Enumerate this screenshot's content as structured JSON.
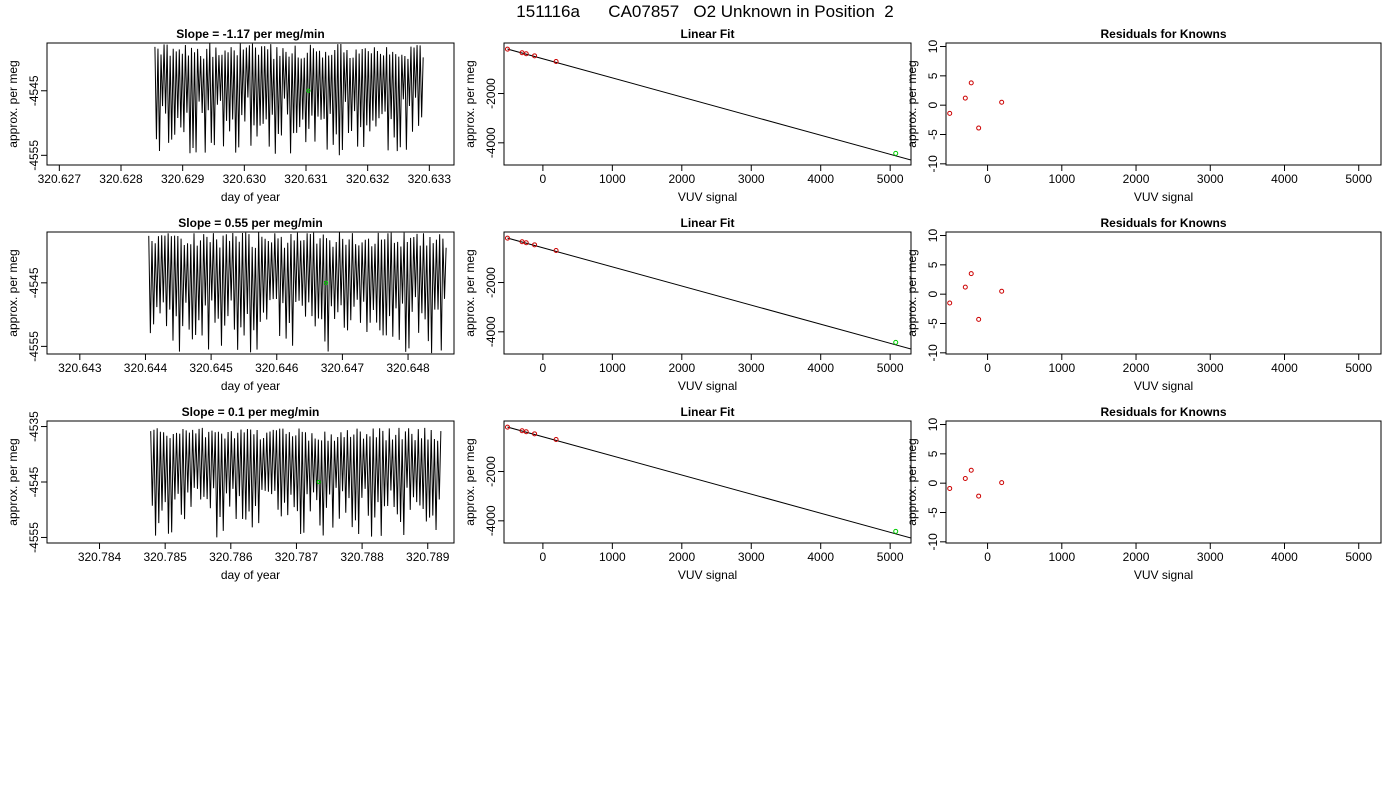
{
  "page_title": "151116a      CA07857   O2 Unknown in Position  2",
  "chart_data": [
    {
      "type": "line",
      "title": "Slope =  -1.17  per meg/min",
      "xlabel": "day of year",
      "ylabel": "approx. per meg",
      "xlim": [
        320.6268,
        320.6334
      ],
      "ylim": [
        -4556.5,
        -4537.6
      ],
      "xticks": [
        "320.627",
        "320.628",
        "320.629",
        "320.630",
        "320.631",
        "320.632",
        "320.633"
      ],
      "yticks": [
        "-4545",
        "-4555"
      ],
      "trace": {
        "x_start": 320.62855,
        "x_end": 320.6329,
        "y_low": -4555,
        "y_high": -4537.6,
        "cycles": 88,
        "seed": 11,
        "color": "#000000"
      },
      "highlight_point": {
        "x": 320.63104,
        "y": -4545.0,
        "color": "#00cc00"
      },
      "grid": false
    },
    {
      "type": "scatter",
      "title": "Linear Fit",
      "xlabel": "VUV signal",
      "ylabel": "approx. per meg",
      "xlim": [
        -560,
        5300
      ],
      "ylim": [
        -4900,
        50
      ],
      "xticks": [
        "0",
        "1000",
        "2000",
        "3000",
        "4000",
        "5000"
      ],
      "yticks": [
        "-2000",
        "-4000"
      ],
      "points": [
        {
          "x": -510,
          "y": -200
        },
        {
          "x": -300,
          "y": -345
        },
        {
          "x": -240,
          "y": -385
        },
        {
          "x": -120,
          "y": -470
        },
        {
          "x": 190,
          "y": -700
        }
      ],
      "points_color": "#cc0000",
      "unknown_point": {
        "x": 5080,
        "y": -4430,
        "color": "#00cc00"
      },
      "fit_line": {
        "x": [
          -510,
          5300
        ],
        "y": [
          -195,
          -4700
        ],
        "color": "#000000"
      },
      "grid": false
    },
    {
      "type": "scatter",
      "title": "Residuals for Knowns",
      "xlabel": "VUV signal",
      "ylabel": "approx. per meg",
      "xlim": [
        -560,
        5300
      ],
      "ylim": [
        -10.2,
        10.6
      ],
      "xticks": [
        "0",
        "1000",
        "2000",
        "3000",
        "4000",
        "5000"
      ],
      "yticks": [
        "-10",
        "-5",
        "0",
        "5",
        "10"
      ],
      "points": [
        {
          "x": -510,
          "y": -1.4
        },
        {
          "x": -300,
          "y": 1.2
        },
        {
          "x": -220,
          "y": 3.8
        },
        {
          "x": -120,
          "y": -3.9
        },
        {
          "x": 190,
          "y": 0.5
        }
      ],
      "points_color": "#cc0000",
      "grid": false
    },
    {
      "type": "line",
      "title": "Slope =  0.55  per meg/min",
      "xlabel": "day of year",
      "ylabel": "approx. per meg",
      "xlim": [
        320.6425,
        320.6487
      ],
      "ylim": [
        -4556.2,
        -4537.0
      ],
      "xticks": [
        "320.643",
        "320.644",
        "320.645",
        "320.646",
        "320.647",
        "320.648"
      ],
      "yticks": [
        "-4545",
        "-4555"
      ],
      "trace": {
        "x_start": 320.64405,
        "x_end": 320.64858,
        "y_low": -4556.2,
        "y_high": -4537.0,
        "cycles": 92,
        "seed": 23,
        "color": "#000000"
      },
      "highlight_point": {
        "x": 320.64675,
        "y": -4545.0,
        "color": "#00cc00"
      },
      "grid": false
    },
    {
      "type": "scatter",
      "title": "Linear Fit",
      "xlabel": "VUV signal",
      "ylabel": "approx. per meg",
      "xlim": [
        -560,
        5300
      ],
      "ylim": [
        -4900,
        50
      ],
      "xticks": [
        "0",
        "1000",
        "2000",
        "3000",
        "4000",
        "5000"
      ],
      "yticks": [
        "-2000",
        "-4000"
      ],
      "points": [
        {
          "x": -510,
          "y": -200
        },
        {
          "x": -300,
          "y": -345
        },
        {
          "x": -240,
          "y": -385
        },
        {
          "x": -120,
          "y": -470
        },
        {
          "x": 190,
          "y": -700
        }
      ],
      "points_color": "#cc0000",
      "unknown_point": {
        "x": 5080,
        "y": -4430,
        "color": "#00cc00"
      },
      "fit_line": {
        "x": [
          -510,
          5300
        ],
        "y": [
          -195,
          -4700
        ],
        "color": "#000000"
      },
      "grid": false
    },
    {
      "type": "scatter",
      "title": "Residuals for Knowns",
      "xlabel": "VUV signal",
      "ylabel": "approx. per meg",
      "xlim": [
        -560,
        5300
      ],
      "ylim": [
        -10.2,
        10.6
      ],
      "xticks": [
        "0",
        "1000",
        "2000",
        "3000",
        "4000",
        "5000"
      ],
      "yticks": [
        "-10",
        "-5",
        "0",
        "5",
        "10"
      ],
      "points": [
        {
          "x": -510,
          "y": -1.5
        },
        {
          "x": -300,
          "y": 1.2
        },
        {
          "x": -220,
          "y": 3.5
        },
        {
          "x": -120,
          "y": -4.3
        },
        {
          "x": 190,
          "y": 0.5
        }
      ],
      "points_color": "#cc0000",
      "grid": false
    },
    {
      "type": "line",
      "title": "Slope =  0.1  per meg/min",
      "xlabel": "day of year",
      "ylabel": "approx. per meg",
      "xlim": [
        320.7832,
        320.7894
      ],
      "ylim": [
        -4556.0,
        -4534.0
      ],
      "xticks": [
        "320.784",
        "320.785",
        "320.786",
        "320.787",
        "320.788",
        "320.789"
      ],
      "yticks": [
        "-4535",
        "-4545",
        "-4555"
      ],
      "trace": {
        "x_start": 320.78478,
        "x_end": 320.7892,
        "y_low": -4555,
        "y_high": -4535.2,
        "cycles": 90,
        "seed": 37,
        "color": "#000000"
      },
      "highlight_point": {
        "x": 320.78734,
        "y": -4545.0,
        "color": "#00cc00"
      },
      "grid": false
    },
    {
      "type": "scatter",
      "title": "Linear Fit",
      "xlabel": "VUV signal",
      "ylabel": "approx. per meg",
      "xlim": [
        -560,
        5300
      ],
      "ylim": [
        -4900,
        50
      ],
      "xticks": [
        "0",
        "1000",
        "2000",
        "3000",
        "4000",
        "5000"
      ],
      "yticks": [
        "-2000",
        "-4000"
      ],
      "points": [
        {
          "x": -510,
          "y": -200
        },
        {
          "x": -300,
          "y": -345
        },
        {
          "x": -240,
          "y": -385
        },
        {
          "x": -120,
          "y": -470
        },
        {
          "x": 190,
          "y": -700
        }
      ],
      "points_color": "#cc0000",
      "unknown_point": {
        "x": 5080,
        "y": -4430,
        "color": "#00cc00"
      },
      "fit_line": {
        "x": [
          -510,
          5300
        ],
        "y": [
          -195,
          -4700
        ],
        "color": "#000000"
      },
      "grid": false
    },
    {
      "type": "scatter",
      "title": "Residuals for Knowns",
      "xlabel": "VUV signal",
      "ylabel": "approx. per meg",
      "xlim": [
        -560,
        5300
      ],
      "ylim": [
        -10.2,
        10.6
      ],
      "xticks": [
        "0",
        "1000",
        "2000",
        "3000",
        "4000",
        "5000"
      ],
      "yticks": [
        "-10",
        "-5",
        "0",
        "5",
        "10"
      ],
      "points": [
        {
          "x": -510,
          "y": -0.9
        },
        {
          "x": -300,
          "y": 0.8
        },
        {
          "x": -220,
          "y": 2.2
        },
        {
          "x": -120,
          "y": -2.2
        },
        {
          "x": 190,
          "y": 0.1
        }
      ],
      "points_color": "#cc0000",
      "grid": false
    }
  ]
}
